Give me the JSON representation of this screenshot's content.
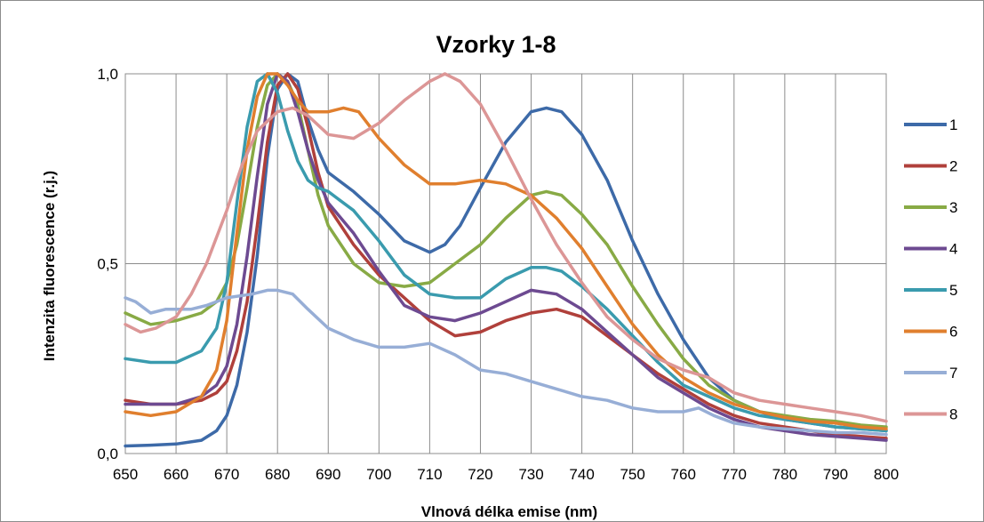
{
  "chart_data": {
    "type": "line",
    "title": "Vzorky 1-8",
    "xlabel": "Vlnová délka emise (nm)",
    "ylabel": "Intenzita fluorescence (r.j.)",
    "xlim": [
      650,
      800
    ],
    "ylim": [
      0,
      1
    ],
    "xticks": [
      650,
      660,
      670,
      680,
      690,
      700,
      710,
      720,
      730,
      740,
      750,
      760,
      770,
      780,
      790,
      800
    ],
    "xtick_labels": [
      "650",
      "660",
      "670",
      "680",
      "690",
      "700",
      "710",
      "720",
      "730",
      "740",
      "750",
      "760",
      "770",
      "780",
      "790",
      "800"
    ],
    "yticks": [
      0,
      0.5,
      1
    ],
    "ytick_labels": [
      "0,0",
      "0,5",
      "1,0"
    ],
    "grid": "vertical and horizontal",
    "legend_position": "right",
    "series": [
      {
        "name": "1",
        "color": "#3d6aa8",
        "x": [
          650,
          655,
          660,
          665,
          668,
          670,
          672,
          674,
          676,
          678,
          680,
          682,
          684,
          686,
          688,
          690,
          695,
          700,
          705,
          710,
          713,
          716,
          720,
          725,
          730,
          733,
          736,
          740,
          745,
          750,
          755,
          760,
          765,
          770,
          775,
          780,
          785,
          790,
          795,
          800
        ],
        "y": [
          0.02,
          0.022,
          0.025,
          0.035,
          0.06,
          0.1,
          0.18,
          0.32,
          0.52,
          0.78,
          0.96,
          1.0,
          0.98,
          0.88,
          0.8,
          0.74,
          0.69,
          0.63,
          0.56,
          0.53,
          0.55,
          0.6,
          0.7,
          0.82,
          0.9,
          0.91,
          0.9,
          0.84,
          0.72,
          0.56,
          0.42,
          0.3,
          0.2,
          0.14,
          0.11,
          0.09,
          0.08,
          0.07,
          0.065,
          0.06
        ]
      },
      {
        "name": "2",
        "color": "#b0403b",
        "x": [
          650,
          655,
          660,
          665,
          668,
          670,
          672,
          674,
          676,
          678,
          680,
          682,
          684,
          686,
          688,
          690,
          695,
          700,
          705,
          710,
          715,
          720,
          725,
          730,
          735,
          740,
          745,
          750,
          755,
          760,
          765,
          770,
          775,
          780,
          785,
          790,
          795,
          800
        ],
        "y": [
          0.14,
          0.13,
          0.13,
          0.14,
          0.16,
          0.19,
          0.27,
          0.4,
          0.6,
          0.82,
          0.97,
          1.0,
          0.96,
          0.86,
          0.74,
          0.65,
          0.55,
          0.47,
          0.41,
          0.35,
          0.31,
          0.32,
          0.35,
          0.37,
          0.38,
          0.36,
          0.31,
          0.26,
          0.21,
          0.17,
          0.13,
          0.1,
          0.08,
          0.07,
          0.06,
          0.05,
          0.045,
          0.04
        ]
      },
      {
        "name": "3",
        "color": "#88aa45",
        "x": [
          650,
          655,
          660,
          665,
          668,
          670,
          672,
          674,
          676,
          678,
          680,
          682,
          684,
          686,
          688,
          690,
          695,
          700,
          705,
          710,
          715,
          720,
          725,
          730,
          733,
          736,
          740,
          745,
          750,
          755,
          760,
          765,
          770,
          775,
          780,
          785,
          790,
          795,
          800
        ],
        "y": [
          0.37,
          0.34,
          0.35,
          0.37,
          0.4,
          0.45,
          0.55,
          0.7,
          0.86,
          0.97,
          1.0,
          0.98,
          0.92,
          0.8,
          0.68,
          0.6,
          0.5,
          0.45,
          0.44,
          0.45,
          0.5,
          0.55,
          0.62,
          0.68,
          0.69,
          0.68,
          0.63,
          0.55,
          0.44,
          0.34,
          0.25,
          0.18,
          0.14,
          0.11,
          0.1,
          0.09,
          0.085,
          0.075,
          0.07
        ]
      },
      {
        "name": "4",
        "color": "#6d4a91",
        "x": [
          650,
          655,
          660,
          665,
          668,
          670,
          672,
          674,
          676,
          678,
          680,
          682,
          684,
          686,
          688,
          690,
          695,
          700,
          705,
          710,
          715,
          720,
          725,
          730,
          735,
          740,
          745,
          750,
          755,
          760,
          765,
          770,
          775,
          780,
          785,
          790,
          795,
          800
        ],
        "y": [
          0.13,
          0.13,
          0.13,
          0.15,
          0.18,
          0.23,
          0.34,
          0.52,
          0.73,
          0.92,
          1.0,
          0.98,
          0.9,
          0.8,
          0.72,
          0.66,
          0.58,
          0.48,
          0.39,
          0.36,
          0.35,
          0.37,
          0.4,
          0.43,
          0.42,
          0.38,
          0.32,
          0.26,
          0.2,
          0.16,
          0.12,
          0.09,
          0.07,
          0.06,
          0.05,
          0.045,
          0.04,
          0.035
        ]
      },
      {
        "name": "5",
        "color": "#3a9bae",
        "x": [
          650,
          655,
          660,
          665,
          668,
          670,
          672,
          674,
          676,
          678,
          680,
          682,
          684,
          686,
          688,
          690,
          695,
          700,
          705,
          710,
          715,
          720,
          725,
          730,
          733,
          736,
          740,
          745,
          750,
          755,
          760,
          765,
          770,
          775,
          780,
          785,
          790,
          795,
          800
        ],
        "y": [
          0.25,
          0.24,
          0.24,
          0.27,
          0.33,
          0.45,
          0.66,
          0.86,
          0.98,
          1.0,
          0.95,
          0.85,
          0.77,
          0.72,
          0.7,
          0.69,
          0.64,
          0.56,
          0.47,
          0.42,
          0.41,
          0.41,
          0.46,
          0.49,
          0.49,
          0.48,
          0.44,
          0.38,
          0.31,
          0.24,
          0.18,
          0.15,
          0.12,
          0.1,
          0.09,
          0.08,
          0.07,
          0.065,
          0.06
        ]
      },
      {
        "name": "6",
        "color": "#e07f2e",
        "x": [
          650,
          655,
          660,
          665,
          668,
          670,
          672,
          674,
          676,
          678,
          680,
          682,
          684,
          686,
          688,
          690,
          693,
          696,
          700,
          705,
          710,
          715,
          720,
          725,
          730,
          735,
          740,
          745,
          750,
          755,
          760,
          765,
          770,
          775,
          780,
          785,
          790,
          795,
          800
        ],
        "y": [
          0.11,
          0.1,
          0.11,
          0.15,
          0.22,
          0.35,
          0.58,
          0.8,
          0.94,
          1.0,
          1.0,
          0.97,
          0.93,
          0.9,
          0.9,
          0.9,
          0.91,
          0.9,
          0.83,
          0.76,
          0.71,
          0.71,
          0.72,
          0.71,
          0.68,
          0.62,
          0.54,
          0.44,
          0.34,
          0.26,
          0.2,
          0.16,
          0.13,
          0.11,
          0.095,
          0.085,
          0.08,
          0.07,
          0.065
        ]
      },
      {
        "name": "7",
        "color": "#97aed6",
        "x": [
          650,
          652,
          655,
          658,
          660,
          663,
          666,
          670,
          675,
          678,
          680,
          683,
          686,
          690,
          695,
          700,
          705,
          710,
          715,
          720,
          725,
          730,
          735,
          740,
          745,
          750,
          755,
          760,
          763,
          766,
          770,
          775,
          780,
          785,
          790,
          795,
          800
        ],
        "y": [
          0.41,
          0.4,
          0.37,
          0.38,
          0.38,
          0.38,
          0.39,
          0.41,
          0.42,
          0.43,
          0.43,
          0.42,
          0.38,
          0.33,
          0.3,
          0.28,
          0.28,
          0.29,
          0.26,
          0.22,
          0.21,
          0.19,
          0.17,
          0.15,
          0.14,
          0.12,
          0.11,
          0.11,
          0.12,
          0.1,
          0.08,
          0.07,
          0.065,
          0.06,
          0.055,
          0.055,
          0.05
        ]
      },
      {
        "name": "8",
        "color": "#dc9696",
        "x": [
          650,
          653,
          656,
          660,
          663,
          666,
          670,
          673,
          676,
          680,
          683,
          686,
          690,
          695,
          700,
          705,
          710,
          713,
          716,
          720,
          725,
          730,
          735,
          740,
          745,
          750,
          755,
          760,
          765,
          770,
          775,
          780,
          785,
          790,
          795,
          800
        ],
        "y": [
          0.34,
          0.32,
          0.33,
          0.36,
          0.42,
          0.5,
          0.64,
          0.76,
          0.85,
          0.9,
          0.91,
          0.89,
          0.84,
          0.83,
          0.87,
          0.93,
          0.98,
          1.0,
          0.98,
          0.92,
          0.8,
          0.67,
          0.55,
          0.45,
          0.36,
          0.3,
          0.25,
          0.22,
          0.2,
          0.16,
          0.14,
          0.13,
          0.12,
          0.11,
          0.1,
          0.085
        ]
      }
    ]
  }
}
